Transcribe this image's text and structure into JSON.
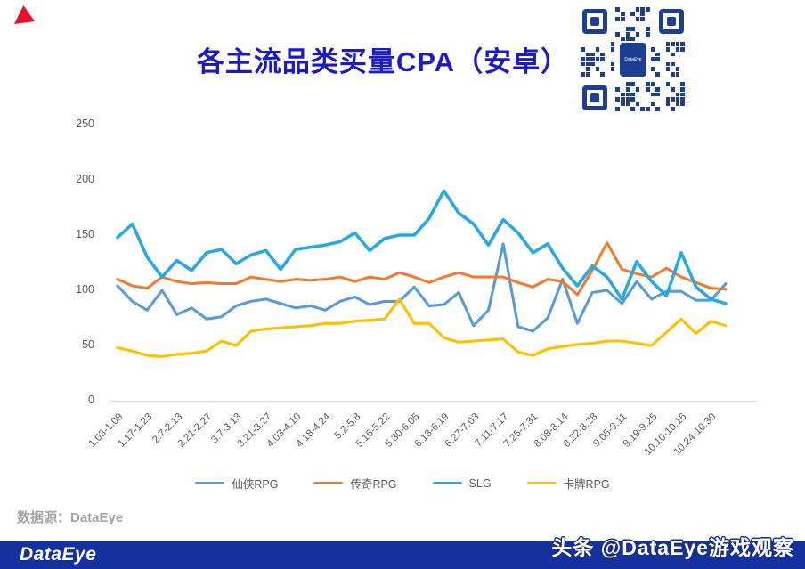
{
  "header": {
    "title": "各主流品类买量CPA（安卓）",
    "title_color": "#1b1acb",
    "accent_triangle_color": "#e8112d",
    "qr_color": "#1e3e92",
    "qr_center_label": "DataEye"
  },
  "chart_data": {
    "type": "line",
    "title": "各主流品类买量CPA（安卓）",
    "ylim": [
      0,
      250
    ],
    "y_ticks": [
      0,
      50,
      100,
      150,
      200,
      250
    ],
    "grid": false,
    "legend_position": "bottom",
    "categories": [
      "1.03-1.09",
      "1.17-1.23",
      "2.7-2.13",
      "2.21-2.27",
      "3.7-3.13",
      "3.21-3.27",
      "4.03-4.10",
      "4.18-4.24",
      "5.2-5.8",
      "5.16-5.22",
      "5.30-6.05",
      "6.13-6.19",
      "6.27-7.03",
      "7.11-7.17",
      "7.25-7.31",
      "8.08-8.14",
      "8.22-8.28",
      "9.05-9.11",
      "9.19-9.25",
      "10.10-10.16",
      "10.24-10.30"
    ],
    "label_every": 2,
    "series": [
      {
        "name": "仙侠RPG",
        "color": "#5B9BD5",
        "values": [
          104,
          90,
          82,
          100,
          78,
          84,
          74,
          76,
          86,
          90,
          92,
          88,
          84,
          86,
          82,
          90,
          94,
          87,
          90,
          90,
          103,
          86,
          87,
          98,
          68,
          82,
          142,
          67,
          63,
          75,
          110,
          70,
          98,
          100,
          88,
          108,
          92,
          99,
          99,
          91,
          91,
          106
        ]
      },
      {
        "name": "传奇RPG",
        "color": "#ED7D31",
        "values": [
          110,
          104,
          102,
          112,
          108,
          106,
          107,
          106,
          106,
          112,
          110,
          108,
          110,
          109,
          110,
          112,
          108,
          112,
          110,
          116,
          112,
          107,
          112,
          116,
          112,
          112,
          112,
          107,
          103,
          110,
          108,
          96,
          118,
          143,
          119,
          115,
          112,
          120,
          112,
          107,
          102,
          101
        ]
      },
      {
        "name": "SLG",
        "color": "#29A9E0",
        "values": [
          148,
          160,
          130,
          112,
          127,
          118,
          134,
          137,
          124,
          132,
          136,
          119,
          137,
          139,
          141,
          144,
          152,
          136,
          147,
          150,
          150,
          165,
          190,
          170,
          160,
          141,
          164,
          152,
          134,
          142,
          120,
          104,
          122,
          112,
          92,
          126,
          108,
          95,
          134,
          103,
          92,
          88
        ]
      },
      {
        "name": "卡牌RPG",
        "color": "#FFC000",
        "values": [
          48,
          45,
          41,
          40,
          42,
          43,
          45,
          54,
          50,
          63,
          65,
          66,
          67,
          68,
          70,
          70,
          72,
          73,
          74,
          92,
          70,
          70,
          57,
          53,
          54,
          55,
          56,
          44,
          41,
          47,
          49,
          51,
          52,
          54,
          54,
          52,
          50,
          62,
          74,
          61,
          72,
          68
        ]
      }
    ]
  },
  "footer": {
    "source_label": "数据源：DataEye",
    "brand_logo": "DataEye",
    "watermark": "头条 @DataEye游戏观察",
    "bar_color": "#15309f"
  }
}
